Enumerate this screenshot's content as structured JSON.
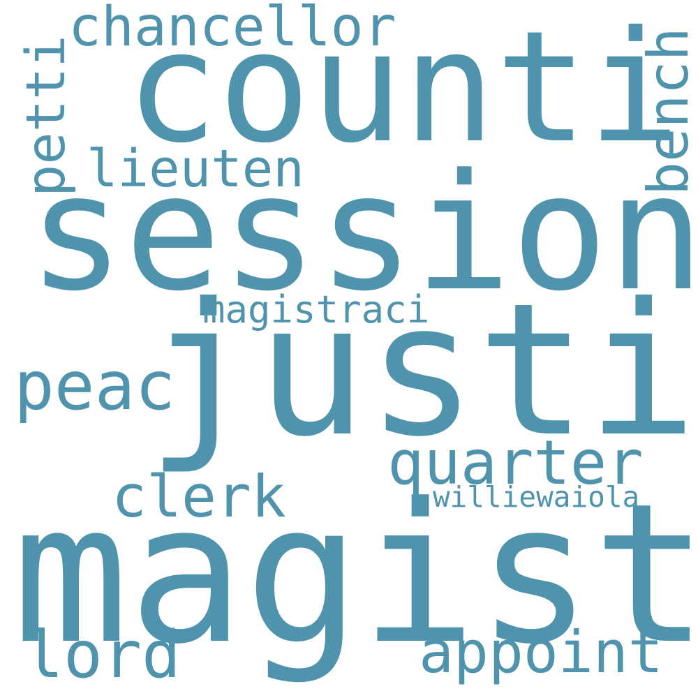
{
  "cloud": {
    "background": "#ffffff",
    "word_color": "#5093ad",
    "words": {
      "magistr": "magistr",
      "justic": "justic",
      "session": "session",
      "counti": "counti",
      "chancellor": "chancellor",
      "lieuten": "lieuten",
      "peac": "peac",
      "quarter": "quarter",
      "clerk": "clerk",
      "appoint": "appoint",
      "lord": "lord",
      "magistraci": "magistraci",
      "williewaiola": "williewaiola",
      "petti": "petti",
      "bench": "bench"
    }
  }
}
